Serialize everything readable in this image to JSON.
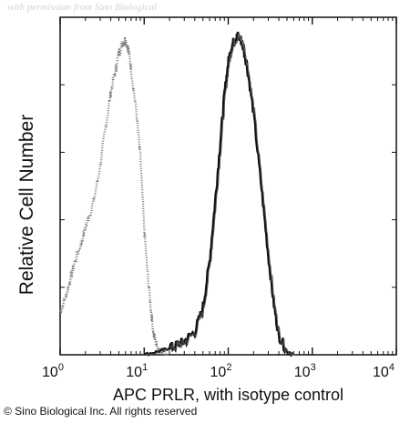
{
  "watermark": "with permission from Sino Biological",
  "copyright": "© Sino Biological Inc. All rights reserved",
  "chart_data": {
    "type": "line",
    "xlabel": "APC PRLR, with isotype control",
    "ylabel": "Relative Cell Number",
    "xscale": "log",
    "xlim": [
      1,
      10000
    ],
    "ylim": [
      0,
      100
    ],
    "grid": false,
    "legend": "none",
    "x_ticks": [
      {
        "base": "10",
        "exp": "0",
        "value": 1
      },
      {
        "base": "10",
        "exp": "1",
        "value": 10
      },
      {
        "base": "10",
        "exp": "2",
        "value": 100
      },
      {
        "base": "10",
        "exp": "3",
        "value": 1000
      },
      {
        "base": "10",
        "exp": "4",
        "value": 10000
      }
    ],
    "series": [
      {
        "style": "dotted",
        "color": "#7a7a7a",
        "x": [
          1,
          1.15,
          1.3,
          1.5,
          1.8,
          2.1,
          2.5,
          3,
          3.5,
          4,
          4.5,
          5,
          5.5,
          6,
          6.5,
          7,
          8,
          9,
          10,
          11,
          12,
          13,
          14,
          16,
          20
        ],
        "y": [
          13,
          17,
          22,
          28,
          34,
          40,
          46,
          57,
          69,
          79,
          85,
          91,
          94,
          95,
          92,
          86,
          74,
          60,
          38,
          24,
          14,
          6,
          3,
          1,
          0
        ]
      },
      {
        "style": "solid",
        "color": "#111111",
        "x": [
          10,
          15,
          20,
          25,
          30,
          40,
          50,
          60,
          70,
          80,
          90,
          100,
          110,
          120,
          130,
          140,
          150,
          170,
          200,
          250,
          300,
          350,
          400,
          500,
          600
        ],
        "y": [
          0,
          1,
          2,
          3,
          4,
          7,
          14,
          28,
          46,
          63,
          78,
          88,
          93,
          95,
          96,
          95,
          93,
          86,
          73,
          50,
          30,
          15,
          6,
          1,
          0
        ]
      }
    ]
  }
}
